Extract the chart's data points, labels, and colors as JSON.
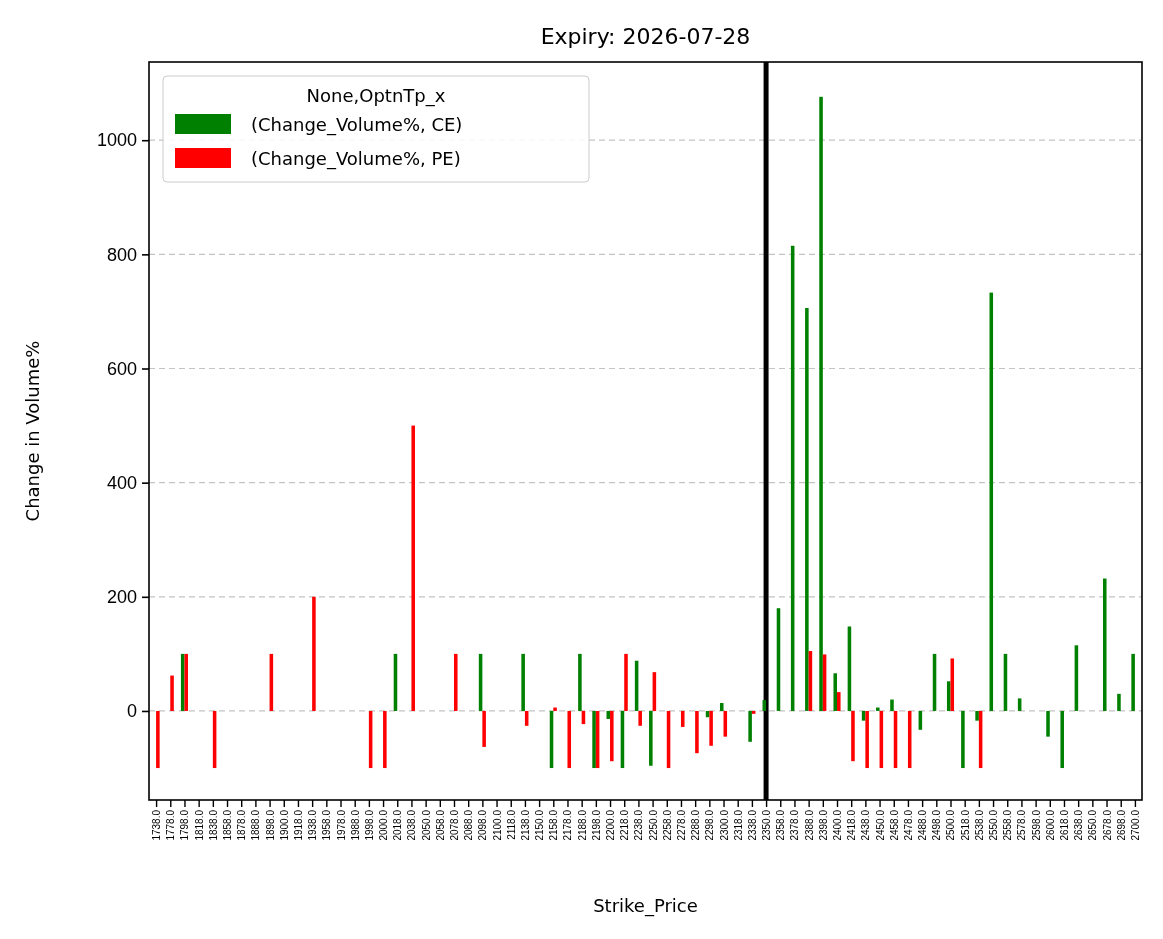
{
  "chart_data": {
    "type": "bar",
    "title": "Expiry: 2026-07-28",
    "xlabel": "Strike_Price",
    "ylabel": "Change in Volume%",
    "legend_title": "None,OptnTp_x",
    "categories": [
      "1738.0",
      "1778.0",
      "1798.0",
      "1818.0",
      "1838.0",
      "1858.0",
      "1878.0",
      "1888.0",
      "1898.0",
      "1900.0",
      "1918.0",
      "1938.0",
      "1958.0",
      "1978.0",
      "1988.0",
      "1998.0",
      "2000.0",
      "2018.0",
      "2038.0",
      "2050.0",
      "2058.0",
      "2078.0",
      "2088.0",
      "2098.0",
      "2100.0",
      "2118.0",
      "2138.0",
      "2150.0",
      "2158.0",
      "2178.0",
      "2188.0",
      "2198.0",
      "2200.0",
      "2218.0",
      "2238.0",
      "2250.0",
      "2258.0",
      "2278.0",
      "2288.0",
      "2298.0",
      "2300.0",
      "2318.0",
      "2338.0",
      "2350.0",
      "2358.0",
      "2378.0",
      "2388.0",
      "2398.0",
      "2400.0",
      "2418.0",
      "2438.0",
      "2450.0",
      "2458.0",
      "2478.0",
      "2488.0",
      "2498.0",
      "2500.0",
      "2518.0",
      "2538.0",
      "2550.0",
      "2558.0",
      "2578.0",
      "2598.0",
      "2600.0",
      "2618.0",
      "2638.0",
      "2650.0",
      "2678.0",
      "2698.0",
      "2700.0"
    ],
    "series": [
      {
        "name": "(Change_Volume%, CE)",
        "color": "#008000",
        "values": [
          null,
          null,
          100,
          null,
          null,
          null,
          null,
          null,
          null,
          null,
          null,
          null,
          null,
          null,
          null,
          null,
          null,
          100,
          null,
          null,
          null,
          null,
          null,
          100,
          null,
          null,
          100,
          null,
          -100,
          null,
          100,
          -100,
          -14,
          -100,
          88,
          -96,
          null,
          null,
          null,
          -11,
          14,
          null,
          -54,
          19,
          180,
          815,
          706,
          1076,
          66,
          148,
          -17,
          6,
          20,
          null,
          -33,
          100,
          52,
          -100,
          -17,
          733,
          100,
          22,
          null,
          -45,
          -100,
          115,
          null,
          232,
          30,
          100
        ]
      },
      {
        "name": "(Change_Volume%, PE)",
        "color": "#ff0000",
        "values": [
          -100,
          62,
          100,
          null,
          -100,
          null,
          null,
          null,
          100,
          null,
          null,
          200,
          null,
          null,
          null,
          -100,
          -100,
          null,
          500,
          null,
          null,
          100,
          null,
          -63,
          null,
          null,
          -26,
          null,
          6,
          -100,
          -23,
          -100,
          -88,
          100,
          -26,
          68,
          -100,
          -28,
          -74,
          -61,
          -45,
          null,
          -5,
          null,
          null,
          null,
          105,
          99,
          33,
          -88,
          -100,
          -100,
          -100,
          -100,
          null,
          null,
          92,
          null,
          -100,
          null,
          null,
          null,
          null,
          null,
          null,
          null,
          null,
          null,
          null,
          null
        ]
      }
    ],
    "ylim": [
      -156,
      1137
    ],
    "yticks": [
      0,
      200,
      400,
      600,
      800,
      1000
    ],
    "grid": "y",
    "legend": "top left",
    "ref_lines": [
      {
        "axis": "x",
        "value": "2350.0",
        "color": "#000000",
        "line_style": "solid"
      }
    ]
  }
}
